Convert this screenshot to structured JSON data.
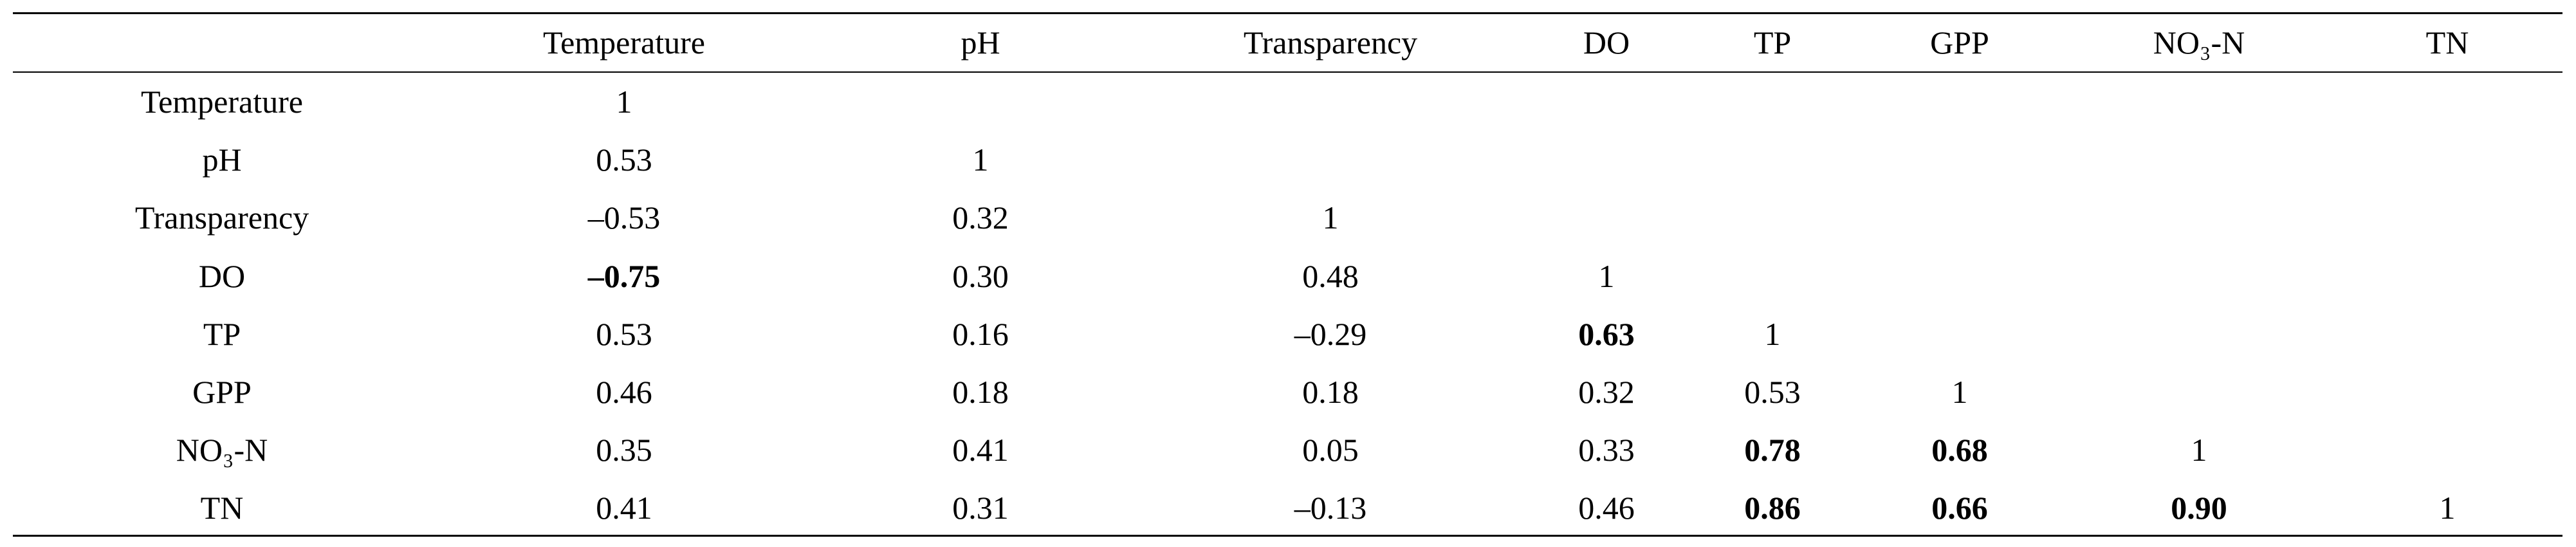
{
  "table": {
    "columns": [
      "Temperature",
      "pH",
      "Transparency",
      "DO",
      "TP",
      "GPP",
      "NO₃-N",
      "TN"
    ],
    "rows": [
      {
        "label": "Temperature",
        "cells": [
          "1"
        ]
      },
      {
        "label": "pH",
        "cells": [
          "0.53",
          "1"
        ]
      },
      {
        "label": "Transparency",
        "cells": [
          "–0.53",
          "0.32",
          "1"
        ]
      },
      {
        "label": "DO",
        "cells": [
          "–0.75",
          "0.30",
          "0.48",
          "1"
        ],
        "bold": [
          0
        ]
      },
      {
        "label": "TP",
        "cells": [
          "0.53",
          "0.16",
          "–0.29",
          "0.63",
          "1"
        ],
        "bold": [
          3
        ]
      },
      {
        "label": "GPP",
        "cells": [
          "0.46",
          "0.18",
          "0.18",
          "0.32",
          "0.53",
          "1"
        ]
      },
      {
        "label": "NO₃-N",
        "cells": [
          "0.35",
          "0.41",
          "0.05",
          "0.33",
          "0.78",
          "0.68",
          "1"
        ],
        "bold": [
          4,
          5
        ]
      },
      {
        "label": "TN",
        "cells": [
          "0.41",
          "0.31",
          "–0.13",
          "0.46",
          "0.86",
          "0.66",
          "0.90",
          "1"
        ],
        "bold": [
          4,
          5,
          6
        ]
      }
    ]
  }
}
